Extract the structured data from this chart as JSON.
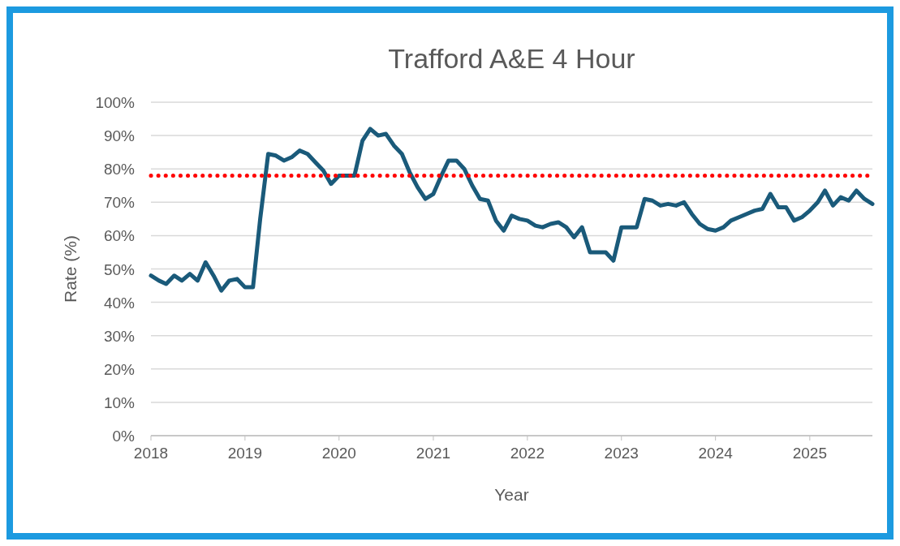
{
  "chart_data": {
    "type": "line",
    "title": "Trafford A&E 4 Hour",
    "xlabel": "Year",
    "ylabel": "Rate (%)",
    "x": [
      "2018-01",
      "2018-02",
      "2018-03",
      "2018-04",
      "2018-05",
      "2018-06",
      "2018-07",
      "2018-08",
      "2018-09",
      "2018-10",
      "2018-11",
      "2018-12",
      "2019-01",
      "2019-02",
      "2019-03",
      "2019-04",
      "2019-05",
      "2019-06",
      "2019-07",
      "2019-08",
      "2019-09",
      "2019-10",
      "2019-11",
      "2019-12",
      "2020-01",
      "2020-02",
      "2020-03",
      "2020-04",
      "2020-05",
      "2020-06",
      "2020-07",
      "2020-08",
      "2020-09",
      "2020-10",
      "2020-11",
      "2020-12",
      "2021-01",
      "2021-02",
      "2021-03",
      "2021-04",
      "2021-05",
      "2021-06",
      "2021-07",
      "2021-08",
      "2021-09",
      "2021-10",
      "2021-11",
      "2021-12",
      "2022-01",
      "2022-02",
      "2022-03",
      "2022-04",
      "2022-05",
      "2022-06",
      "2022-07",
      "2022-08",
      "2022-09",
      "2022-10",
      "2022-11",
      "2022-12",
      "2023-01",
      "2023-02",
      "2023-03",
      "2023-04",
      "2023-05",
      "2023-06",
      "2023-07",
      "2023-08",
      "2023-09",
      "2023-10",
      "2023-11",
      "2023-12",
      "2024-01",
      "2024-02",
      "2024-03",
      "2024-04",
      "2024-05",
      "2024-06",
      "2024-07",
      "2024-08",
      "2024-09",
      "2024-10",
      "2024-11",
      "2024-12",
      "2025-01",
      "2025-02",
      "2025-03",
      "2025-04",
      "2025-05",
      "2025-06",
      "2025-07",
      "2025-08",
      "2025-09"
    ],
    "series": [
      {
        "color": "#1a5a7a",
        "values": [
          48,
          46.5,
          45.5,
          48,
          46.5,
          48.5,
          46.5,
          52,
          48,
          43.5,
          46.5,
          47,
          44.5,
          44.5,
          65,
          84.5,
          84,
          82.5,
          83.5,
          85.5,
          84.5,
          82,
          79.5,
          75.5,
          78,
          78,
          78,
          88.5,
          92,
          90,
          90.5,
          87,
          84.5,
          79,
          74.5,
          71,
          72.5,
          78,
          82.5,
          82.5,
          80,
          75,
          71,
          70.5,
          64.5,
          61.5,
          66,
          65,
          64.5,
          63,
          62.5,
          63.5,
          64,
          62.5,
          59.5,
          62.5,
          55,
          55,
          55,
          52.5,
          62.5,
          62.5,
          62.5,
          71,
          70.5,
          69,
          69.5,
          69,
          70,
          66.5,
          63.5,
          62,
          61.5,
          62.5,
          64.5,
          65.5,
          66.5,
          67.5,
          68,
          72.5,
          68.5,
          68.5,
          64.5,
          65.5,
          67.5,
          70,
          73.5,
          69,
          71.5,
          70.5,
          73.5,
          71,
          69.5
        ]
      }
    ],
    "xlim": [
      "2018-01",
      "2025-09"
    ],
    "xticks": [
      "2018",
      "2019",
      "2020",
      "2021",
      "2022",
      "2023",
      "2024",
      "2025"
    ],
    "ylim": [
      0,
      100
    ],
    "yticks": [
      {
        "value": 0,
        "label": "0%"
      },
      {
        "value": 10,
        "label": "10%"
      },
      {
        "value": 20,
        "label": "20%"
      },
      {
        "value": 30,
        "label": "30%"
      },
      {
        "value": 40,
        "label": "40%"
      },
      {
        "value": 50,
        "label": "50%"
      },
      {
        "value": 60,
        "label": "60%"
      },
      {
        "value": 70,
        "label": "70%"
      },
      {
        "value": 80,
        "label": "80%"
      },
      {
        "value": 90,
        "label": "90%"
      },
      {
        "value": 100,
        "label": "100%"
      }
    ],
    "grid": "y",
    "marker": "none",
    "line_style": "solid",
    "ref_lines": [
      {
        "axis": "y",
        "value": 78,
        "color": "#ff0000",
        "line_style": "dotted"
      }
    ]
  }
}
